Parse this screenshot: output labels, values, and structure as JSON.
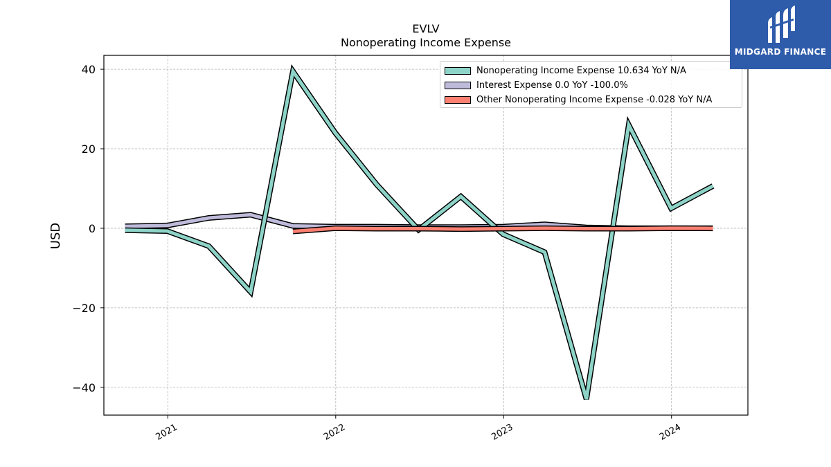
{
  "header": {
    "ticker": "EVLV",
    "subtitle": "Nonoperating Income Expense"
  },
  "logo": {
    "text": "MIDGARD FINANCE",
    "background": "#2e5baa"
  },
  "chart_data": {
    "type": "line",
    "title": "EVLV",
    "subtitle": "Nonoperating Income Expense",
    "xlabel": "",
    "ylabel": "USD",
    "ylim": [
      -47,
      43.5
    ],
    "xlim": [
      "2020-08-15",
      "2024-06-15"
    ],
    "yticks": [
      -40,
      -20,
      0,
      20,
      40
    ],
    "ytick_labels": [
      "−40",
      "−20",
      "0",
      "20",
      "40"
    ],
    "xticks": [
      "2021-01-01",
      "2022-01-01",
      "2023-01-01",
      "2024-01-01"
    ],
    "xtick_labels": [
      "2021",
      "2022",
      "2023",
      "2024"
    ],
    "grid": true,
    "legend_position": "top-right",
    "series": [
      {
        "name": "Interest Expense",
        "legend_label": "Interest Expense  0.0 YoY -100.0%",
        "color": "#bebada",
        "x": [
          "2020-09-30",
          "2020-12-31",
          "2021-03-31",
          "2021-06-30",
          "2021-09-30",
          "2021-12-31",
          "2022-03-31",
          "2022-06-30",
          "2022-09-30",
          "2022-12-31",
          "2023-03-31",
          "2023-06-30",
          "2023-09-30",
          "2023-12-31",
          "2024-03-31"
        ],
        "values": [
          0.5,
          0.7,
          2.6,
          3.4,
          0.6,
          0.4,
          0.4,
          0.3,
          0.3,
          0.4,
          1.0,
          0.2,
          0.0,
          0.0,
          0.0
        ]
      },
      {
        "name": "Nonoperating Income Expense",
        "legend_label": "Nonoperating Income Expense  10.634 YoY N/A",
        "color": "#8dd3c7",
        "x": [
          "2020-09-30",
          "2020-12-31",
          "2021-03-31",
          "2021-06-30",
          "2021-09-30",
          "2021-12-31",
          "2022-03-31",
          "2022-06-30",
          "2022-09-30",
          "2022-12-31",
          "2023-03-31",
          "2023-06-30",
          "2023-09-30",
          "2023-12-31",
          "2024-03-31"
        ],
        "values": [
          -0.5,
          -0.7,
          -4.5,
          -16.0,
          39.5,
          24.0,
          11.0,
          -0.4,
          8.0,
          -1.5,
          -6.0,
          -43.0,
          26.0,
          5.0,
          10.634
        ]
      },
      {
        "name": "Other Nonoperating Income Expense",
        "legend_label": "Other Nonoperating Income Expense  -0.028 YoY N/A",
        "color": "#fb8072",
        "x": [
          "2021-09-30",
          "2021-12-31",
          "2022-03-31",
          "2022-06-30",
          "2022-09-30",
          "2022-12-31",
          "2023-03-31",
          "2023-06-30",
          "2023-09-30",
          "2023-12-31",
          "2024-03-31"
        ],
        "values": [
          -0.8,
          0.0,
          -0.1,
          -0.1,
          -0.2,
          -0.1,
          0.0,
          -0.1,
          -0.1,
          0.0,
          -0.028
        ]
      }
    ]
  }
}
